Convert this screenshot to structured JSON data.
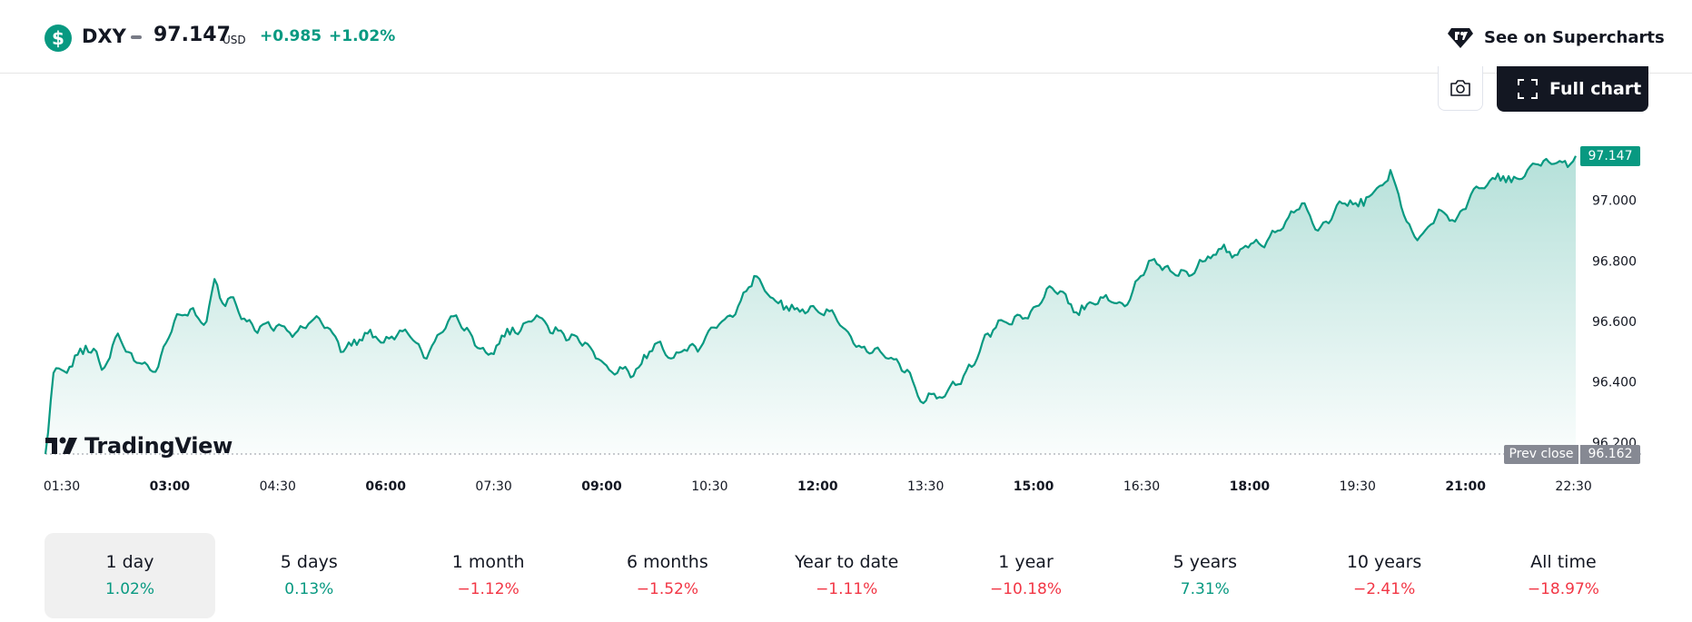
{
  "header": {
    "symbol": "DXY",
    "symbol_icon": "$",
    "price": "97.147",
    "currency": "USD",
    "change_abs": "+0.985",
    "change_pct": "+1.02%",
    "supercharts_label": "See on Supercharts"
  },
  "toolbar": {
    "full_chart_label": "Full chart"
  },
  "brand": {
    "logo_text": "TradingView"
  },
  "colors": {
    "accent_green": "#089981",
    "negative_red": "#f23645",
    "dark": "#131722"
  },
  "chart_data": {
    "type": "area",
    "x_ticks": [
      {
        "label": "01:30",
        "bold": false
      },
      {
        "label": "03:00",
        "bold": true
      },
      {
        "label": "04:30",
        "bold": false
      },
      {
        "label": "06:00",
        "bold": true
      },
      {
        "label": "07:30",
        "bold": false
      },
      {
        "label": "09:00",
        "bold": true
      },
      {
        "label": "10:30",
        "bold": false
      },
      {
        "label": "12:00",
        "bold": true
      },
      {
        "label": "13:30",
        "bold": false
      },
      {
        "label": "15:00",
        "bold": true
      },
      {
        "label": "16:30",
        "bold": false
      },
      {
        "label": "18:00",
        "bold": true
      },
      {
        "label": "19:30",
        "bold": false
      },
      {
        "label": "21:00",
        "bold": true
      },
      {
        "label": "22:30",
        "bold": false
      }
    ],
    "y_ticks": [
      "97.000",
      "96.800",
      "96.600",
      "96.400",
      "96.200"
    ],
    "ylim": [
      96.162,
      97.17
    ],
    "last_value": "97.147",
    "prev_close_label": "Prev close",
    "prev_close_value": "96.162",
    "series": [
      {
        "values": [
          96.162,
          96.43,
          96.44,
          96.45,
          96.49,
          96.52,
          96.51,
          96.44,
          96.48,
          96.56,
          96.5,
          96.47,
          96.46,
          96.44,
          96.45,
          96.53,
          96.6,
          96.62,
          96.64,
          96.61,
          96.6,
          96.74,
          96.66,
          96.68,
          96.63,
          96.6,
          96.57,
          96.59,
          96.58,
          96.59,
          96.57,
          96.56,
          96.58,
          96.6,
          96.61,
          96.58,
          96.55,
          96.5,
          96.52,
          96.54,
          96.56,
          96.55,
          96.53,
          96.55,
          96.57,
          96.56,
          96.53,
          96.48,
          96.52,
          96.56,
          96.6,
          96.62,
          96.57,
          96.55,
          96.51,
          96.49,
          96.52,
          96.55,
          96.58,
          96.57,
          96.6,
          96.62,
          96.6,
          96.56,
          96.57,
          96.54,
          96.55,
          96.53,
          96.5,
          96.47,
          96.44,
          96.43,
          96.45,
          96.42,
          96.46,
          96.5,
          96.53,
          96.49,
          96.48,
          96.5,
          96.52,
          96.5,
          96.55,
          96.58,
          96.6,
          96.62,
          96.65,
          96.7,
          96.75,
          96.72,
          96.68,
          96.66,
          96.65,
          96.64,
          96.64,
          96.65,
          96.63,
          96.64,
          96.62,
          96.58,
          96.55,
          96.52,
          96.5,
          96.51,
          96.49,
          96.48,
          96.46,
          96.44,
          96.38,
          96.33,
          96.36,
          96.35,
          96.37,
          96.39,
          96.42,
          96.45,
          96.5,
          96.56,
          96.58,
          96.6,
          96.59,
          96.62,
          96.61,
          96.65,
          96.68,
          96.71,
          96.7,
          96.66,
          96.63,
          96.64,
          96.66,
          96.68,
          96.67,
          96.66,
          96.65,
          96.7,
          96.75,
          96.8,
          96.79,
          96.78,
          96.76,
          96.77,
          96.75,
          96.78,
          96.8,
          96.82,
          96.84,
          96.83,
          96.82,
          96.85,
          96.86,
          96.85,
          96.88,
          96.9,
          96.93,
          96.96,
          96.99,
          96.95,
          96.9,
          96.93,
          96.96,
          96.99,
          97.0,
          96.98,
          97.01,
          97.03,
          97.05,
          97.1,
          97.02,
          96.93,
          96.88,
          96.89,
          96.92,
          96.97,
          96.95,
          96.93,
          96.97,
          97.02,
          97.04,
          97.05,
          97.07,
          97.08,
          97.06,
          97.07,
          97.1,
          97.12,
          97.13,
          97.12,
          97.13,
          97.11,
          97.147
        ]
      }
    ],
    "grid": false
  },
  "periods": [
    {
      "label": "1 day",
      "value": "1.02%",
      "dir": "pos",
      "active": true
    },
    {
      "label": "5 days",
      "value": "0.13%",
      "dir": "pos",
      "active": false
    },
    {
      "label": "1 month",
      "value": "−1.12%",
      "dir": "neg",
      "active": false
    },
    {
      "label": "6 months",
      "value": "−1.52%",
      "dir": "neg",
      "active": false
    },
    {
      "label": "Year to date",
      "value": "−1.11%",
      "dir": "neg",
      "active": false
    },
    {
      "label": "1 year",
      "value": "−10.18%",
      "dir": "neg",
      "active": false
    },
    {
      "label": "5 years",
      "value": "7.31%",
      "dir": "pos",
      "active": false
    },
    {
      "label": "10 years",
      "value": "−2.41%",
      "dir": "neg",
      "active": false
    },
    {
      "label": "All time",
      "value": "−18.97%",
      "dir": "neg",
      "active": false
    }
  ],
  "icons": {
    "symbol": "dollar-circle-icon",
    "supercharts": "tradingview-diamond-icon",
    "camera": "camera-icon",
    "fullscreen": "fullscreen-icon",
    "logo": "tradingview-logo-icon"
  }
}
